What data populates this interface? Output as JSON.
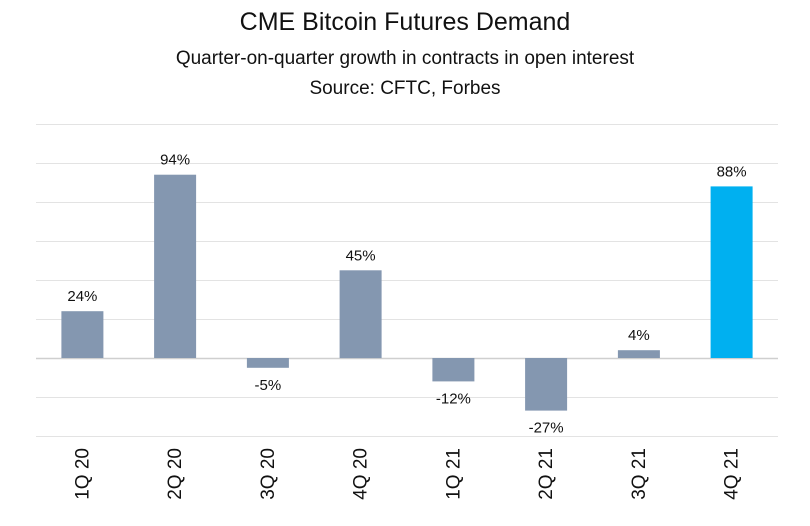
{
  "chart_data": {
    "type": "bar",
    "title": "CME Bitcoin Futures Demand",
    "subtitle": "Quarter-on-quarter growth in contracts in open interest",
    "source": "Source: CFTC, Forbes",
    "xlabel": "",
    "ylabel": "",
    "categories": [
      "1Q 20",
      "2Q 20",
      "3Q 20",
      "4Q 20",
      "1Q 21",
      "2Q 21",
      "3Q 21",
      "4Q 21"
    ],
    "values": [
      24,
      94,
      -5,
      45,
      -12,
      -27,
      4,
      88
    ],
    "data_labels": [
      "24%",
      "94%",
      "-5%",
      "45%",
      "-12%",
      "-27%",
      "4%",
      "88%"
    ],
    "unit": "%",
    "ylim": [
      -40,
      120
    ],
    "gridlines": [
      -40,
      -20,
      0,
      20,
      40,
      60,
      80,
      100,
      120
    ],
    "grid": true,
    "legend": "none",
    "colors": {
      "default_bar": "#8497b0",
      "highlight_bar": "#00b0f0",
      "grid": "#e3e3e3",
      "zero_line": "#cfcfcf",
      "text": "#111111"
    },
    "highlight_index": 7
  }
}
